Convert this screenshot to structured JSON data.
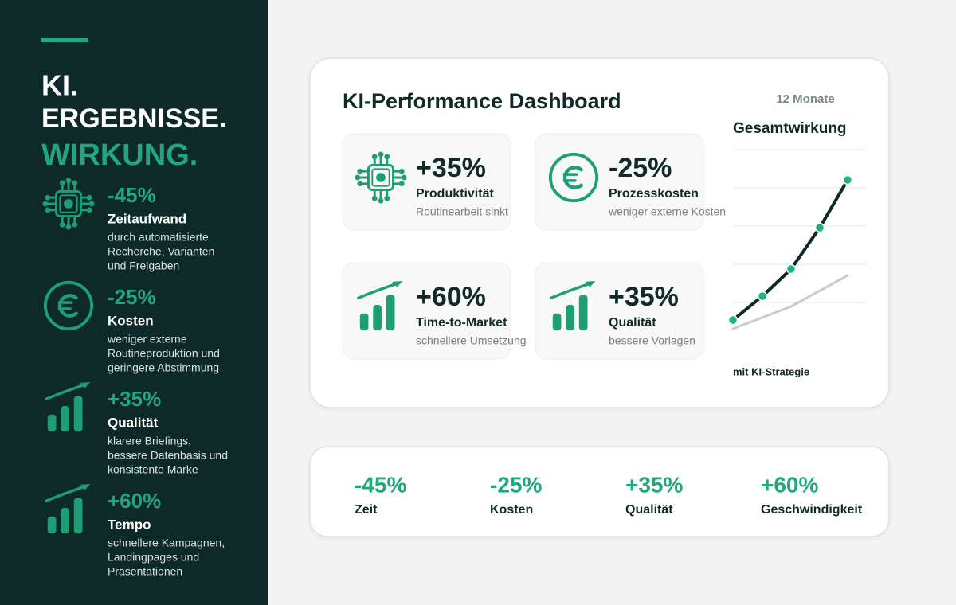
{
  "sidebar": {
    "title": [
      "KI.",
      "ERGEBNISSE.",
      "WIRKUNG."
    ],
    "items": [
      {
        "value": "-45%",
        "label": "Zeitaufwand",
        "description": [
          "durch automatisierte",
          "Recherche, Varianten",
          "und Freigaben"
        ]
      },
      {
        "value": "-25%",
        "label": "Kosten",
        "description": [
          "weniger externe",
          "Routineproduktion und",
          "geringere Abstimmung"
        ]
      },
      {
        "value": "+35%",
        "label": "Qualität",
        "description": [
          "klarere Briefings,",
          "bessere Datenbasis und",
          "konsistente Marke"
        ]
      },
      {
        "value": "+60%",
        "label": "Tempo",
        "description": [
          "schnellere Kampagnen,",
          "Landingpages und",
          "Präsentationen"
        ]
      }
    ]
  },
  "dashboard": {
    "title": "KI-Performance Dashboard",
    "tiles": [
      {
        "value": "+35%",
        "label": "Produktivität",
        "note": "Routinearbeit sinkt"
      },
      {
        "value": "-25%",
        "label": "Prozesskosten",
        "note": "weniger externe Kosten"
      },
      {
        "value": "+60%",
        "label": "Time-to-Market",
        "note": "schnellere Umsetzung"
      },
      {
        "value": "+35%",
        "label": "Qualität",
        "note": "bessere Vorlagen"
      }
    ],
    "chart": {
      "period": "12 Monate",
      "title": "Gesamtwirkung",
      "caption": "mit KI-Strategie"
    }
  },
  "summary": [
    {
      "value": "-45%",
      "label": "Zeit"
    },
    {
      "value": "-25%",
      "label": "Kosten"
    },
    {
      "value": "+35%",
      "label": "Qualität"
    },
    {
      "value": "+60%",
      "label": "Geschwindigkeit"
    }
  ]
}
